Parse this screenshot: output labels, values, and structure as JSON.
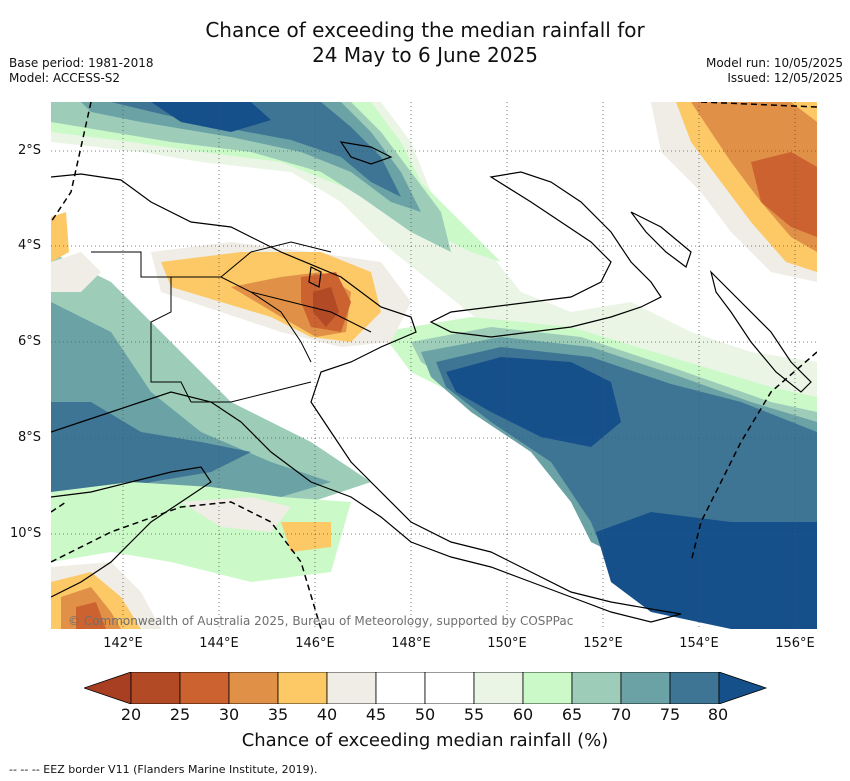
{
  "title": {
    "line1": "Chance of exceeding the median rainfall for",
    "line2": "24 May to 6 June 2025"
  },
  "meta_left": {
    "base_period": "Base period: 1981-2018",
    "model": "Model: ACCESS-S2"
  },
  "meta_right": {
    "model_run": "Model run: 10/05/2025",
    "issued": "Issued: 12/05/2025"
  },
  "map": {
    "lat_labels": [
      "2°S",
      "4°S",
      "6°S",
      "8°S",
      "10°S"
    ],
    "lon_labels": [
      "142°E",
      "144°E",
      "146°E",
      "148°E",
      "150°E",
      "152°E",
      "154°E",
      "156°E"
    ],
    "copyright": "© Commonwealth of Australia 2025, Bureau of Meteorology, supported by COSPPac"
  },
  "colorbar": {
    "ticks": [
      "20",
      "25",
      "30",
      "35",
      "40",
      "45",
      "50",
      "55",
      "60",
      "65",
      "70",
      "75",
      "80"
    ],
    "colors": [
      "#a83f22",
      "#b34a26",
      "#cc6230",
      "#e09047",
      "#fdc866",
      "#f0ede6",
      "#ffffff",
      "#ffffff",
      "#eaf5e6",
      "#ccf9c8",
      "#9dcdb9",
      "#6aa2a6",
      "#3f7594",
      "#16508a"
    ],
    "label": "Chance of exceeding median rainfall (%)"
  },
  "legend_note": "-- -- -- EEZ border V11 (Flanders Marine Institute, 2019)."
}
